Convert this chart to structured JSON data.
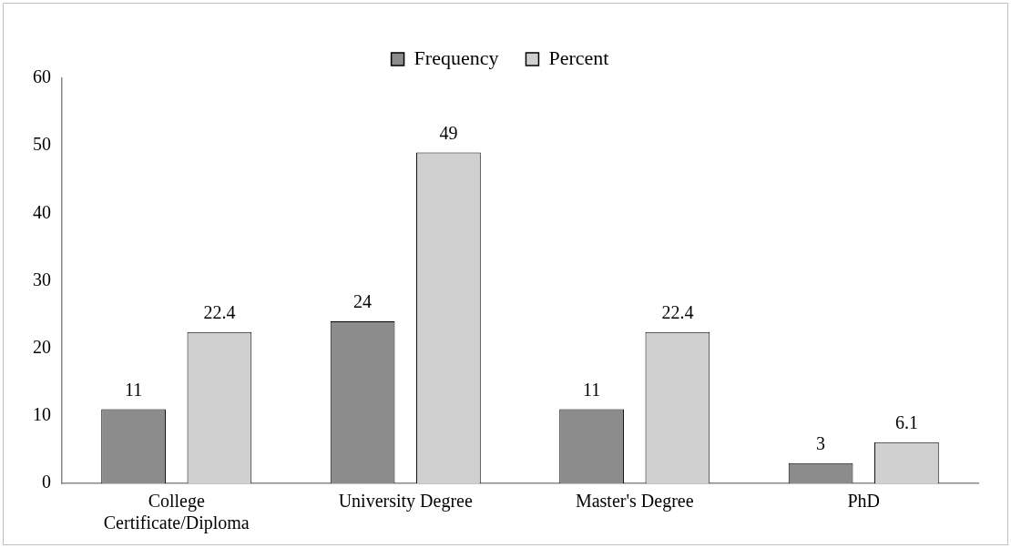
{
  "chart_data": {
    "type": "bar",
    "categories": [
      "College Certificate/Diploma",
      "University Degree",
      "Master's Degree",
      "PhD"
    ],
    "series": [
      {
        "name": "Frequency",
        "color": "#8c8c8c",
        "values": [
          11,
          24,
          11,
          3
        ]
      },
      {
        "name": "Percent",
        "color": "#d0d0d0",
        "values": [
          22.4,
          49,
          22.4,
          6.1
        ]
      }
    ],
    "ylim": [
      0,
      60
    ],
    "yticks": [
      0,
      10,
      20,
      30,
      40,
      50,
      60
    ],
    "grid": false,
    "legend": "top",
    "data_labels": true
  }
}
